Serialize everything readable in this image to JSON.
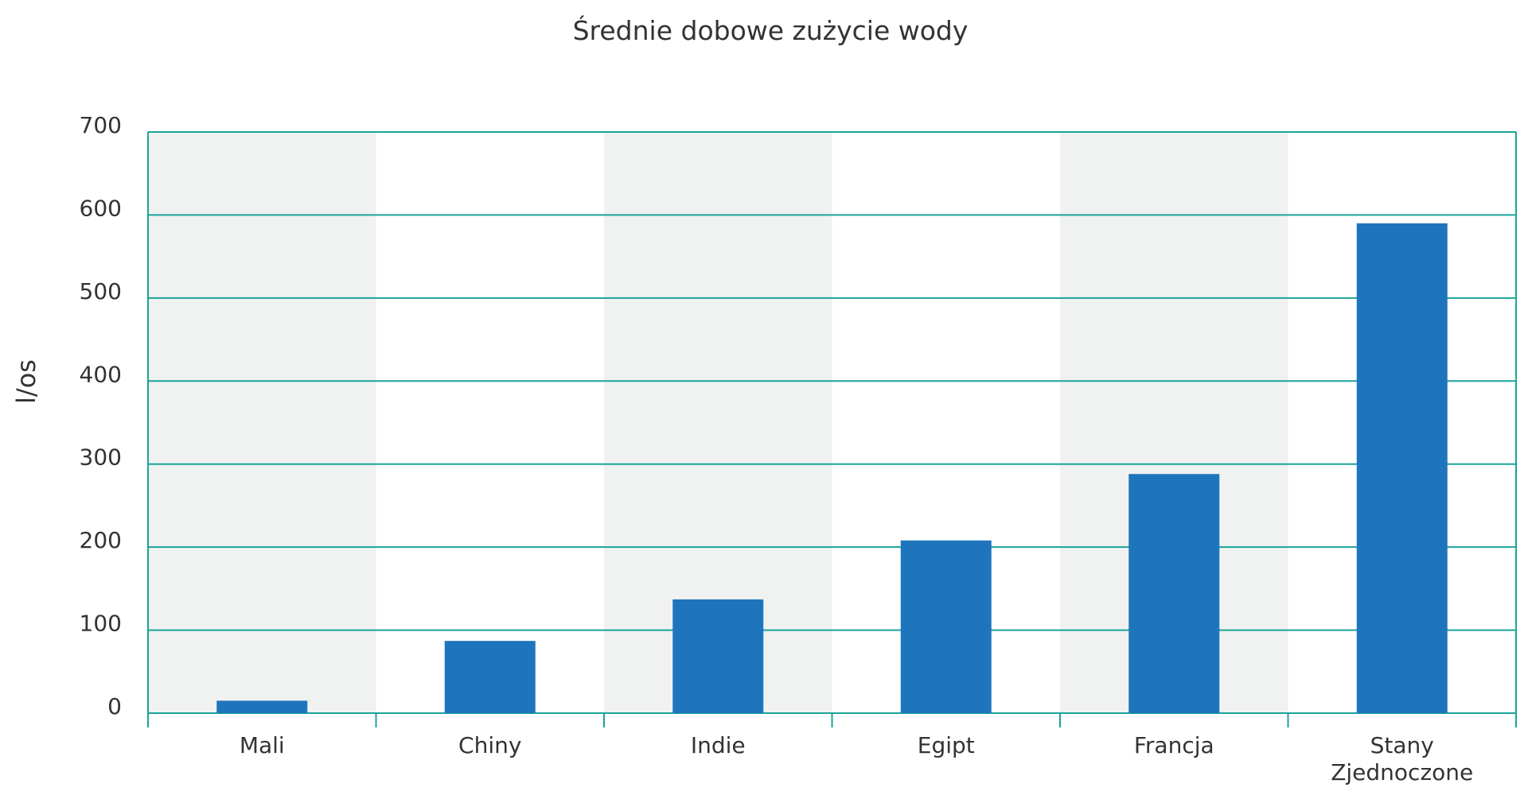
{
  "chart_data": {
    "type": "bar",
    "title": "Średnie dobowe zużycie wody",
    "xlabel": "",
    "ylabel": "l/os",
    "ylim": [
      0,
      700
    ],
    "yticks": [
      0,
      100,
      200,
      300,
      400,
      500,
      600,
      700
    ],
    "categories": [
      [
        "Mali"
      ],
      [
        "Chiny"
      ],
      [
        "Indie"
      ],
      [
        "Egipt"
      ],
      [
        "Francja"
      ],
      [
        "Stany",
        "Zjednoczone"
      ]
    ],
    "values": [
      15,
      87,
      137,
      208,
      288,
      590
    ],
    "grid": true,
    "legend": "none",
    "colors": {
      "bar": "#1f75bd",
      "grid": "#1aa39a",
      "band": "#f0f2f1",
      "text": "#333333"
    }
  }
}
